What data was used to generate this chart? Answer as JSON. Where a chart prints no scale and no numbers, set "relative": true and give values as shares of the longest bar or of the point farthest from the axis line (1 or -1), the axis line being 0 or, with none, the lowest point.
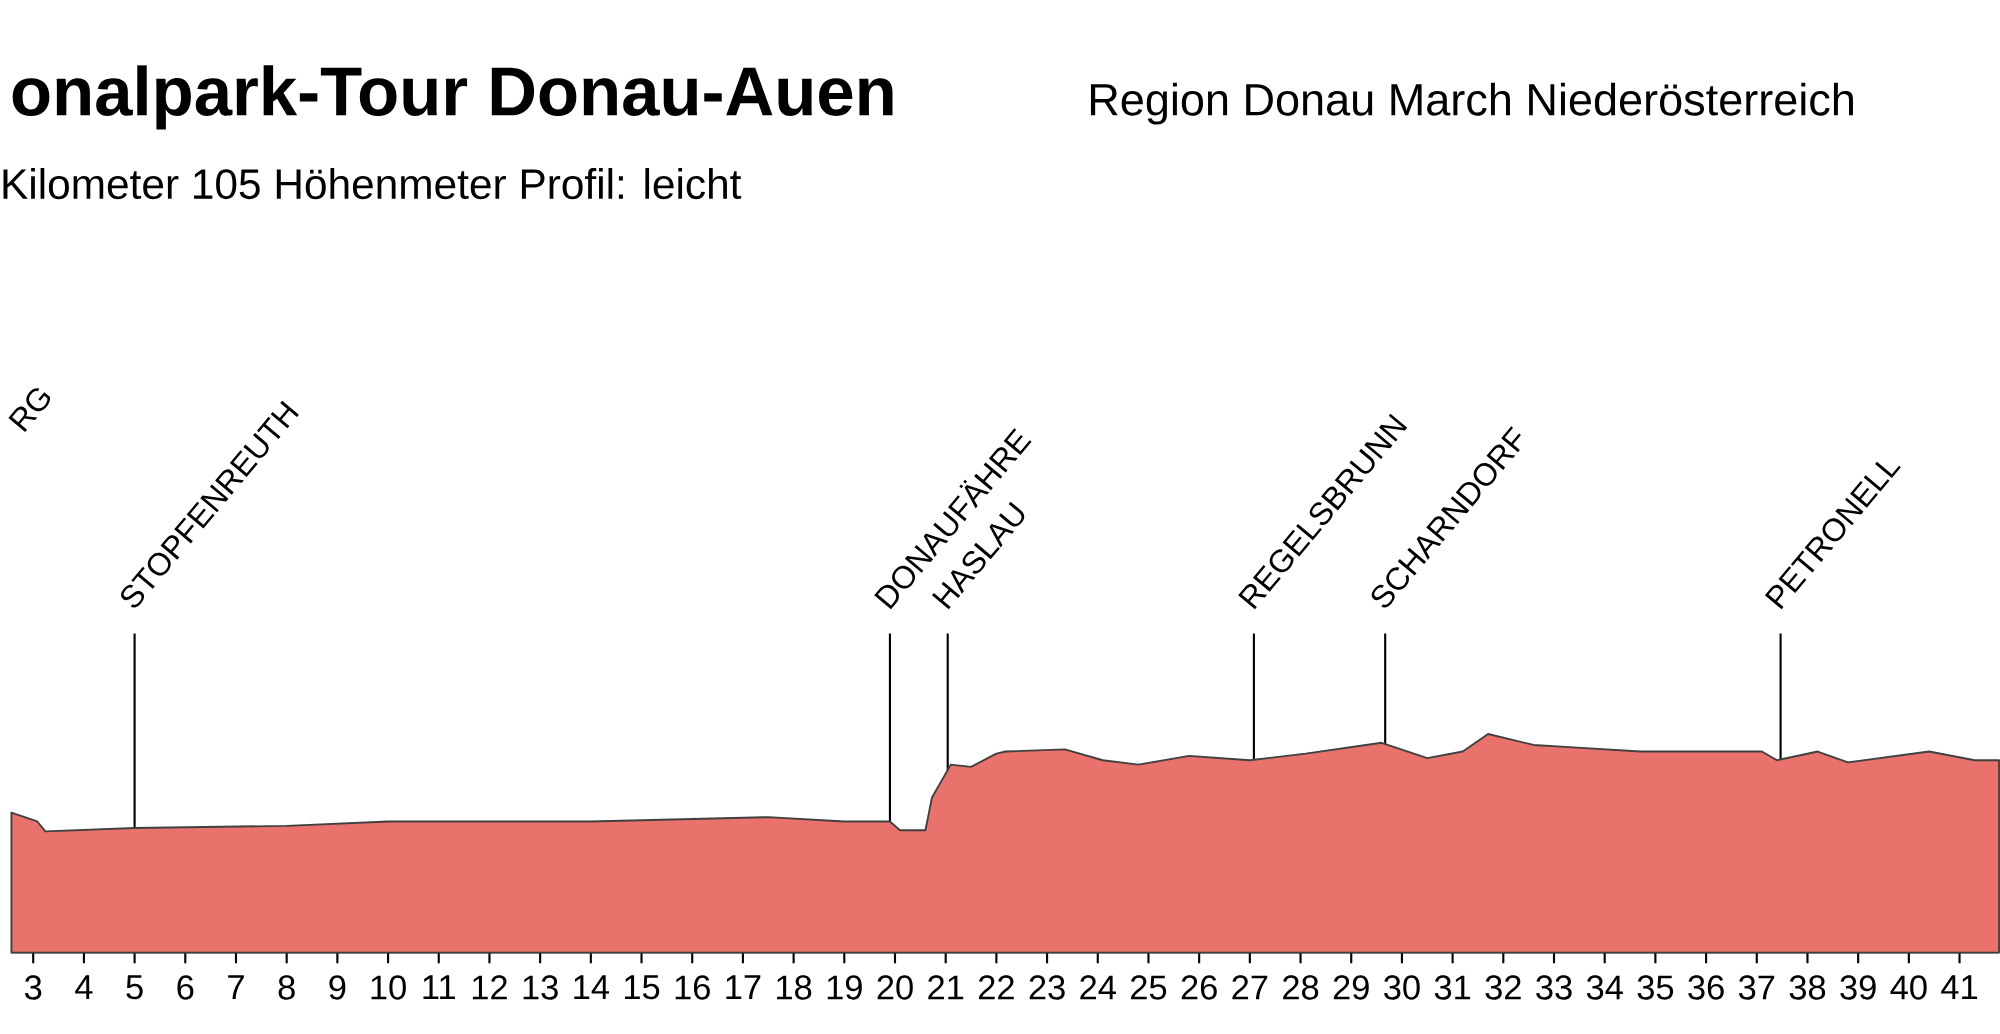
{
  "chart_data": {
    "type": "area",
    "title": "onalpark-Tour Donau-Auen",
    "subtitle": "Region Donau March Niederösterreich",
    "annotations": [
      "Kilometer  105 Höhenmeter  Profil: leicht",
      "RG"
    ],
    "relative": true,
    "color": "#e9726c",
    "x": [
      2.57,
      3.08,
      3.24,
      5,
      8,
      10,
      14,
      17.5,
      19,
      19.9,
      20.1,
      20.6,
      20.73,
      21.1,
      21.5,
      22,
      22.18,
      23.35,
      24.1,
      24.8,
      25.8,
      27.0,
      28.1,
      29.6,
      30.5,
      31.2,
      31.7,
      32.6,
      33.3,
      34.7,
      37.1,
      37.4,
      38.2,
      38.8,
      40.4,
      41.3,
      41.78
    ],
    "values": [
      0.64,
      0.6,
      0.555,
      0.57,
      0.58,
      0.6,
      0.6,
      0.62,
      0.6,
      0.6,
      0.56,
      0.56,
      0.71,
      0.86,
      0.85,
      0.91,
      0.92,
      0.93,
      0.88,
      0.86,
      0.9,
      0.88,
      0.91,
      0.96,
      0.89,
      0.92,
      1.0,
      0.95,
      0.94,
      0.92,
      0.92,
      0.88,
      0.92,
      0.87,
      0.92,
      0.88,
      0.88
    ],
    "xlim": [
      2.57,
      41.78
    ],
    "xticks": [
      3,
      4,
      5,
      6,
      7,
      8,
      9,
      10,
      11,
      12,
      13,
      14,
      15,
      16,
      17,
      18,
      19,
      20,
      21,
      22,
      23,
      24,
      25,
      26,
      27,
      28,
      29,
      30,
      31,
      32,
      33,
      34,
      35,
      36,
      37,
      38,
      39,
      40,
      41
    ],
    "ref_lines": [
      {
        "axis": "x",
        "value": 5,
        "label": "STOPFENREUTH"
      },
      {
        "axis": "x",
        "value": 19.9,
        "label": "DONAUFÄHRE"
      },
      {
        "axis": "x",
        "value": 21.04,
        "label": "HASLAU"
      },
      {
        "axis": "x",
        "value": 27.08,
        "label": "REGELSBRUNN"
      },
      {
        "axis": "x",
        "value": 29.67,
        "label": "SCHARNDORF"
      },
      {
        "axis": "x",
        "value": 37.47,
        "label": "PETRONELL"
      }
    ]
  }
}
